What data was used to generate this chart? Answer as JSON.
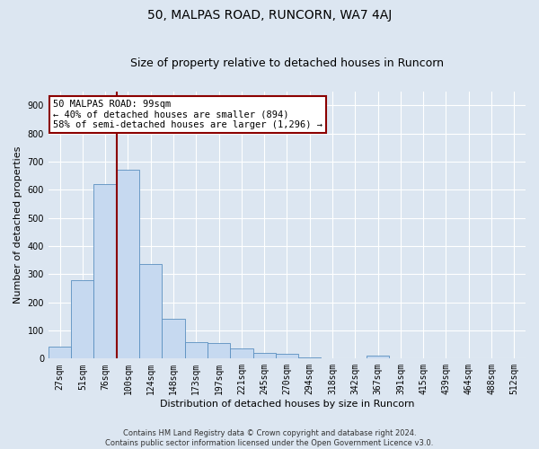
{
  "title": "50, MALPAS ROAD, RUNCORN, WA7 4AJ",
  "subtitle": "Size of property relative to detached houses in Runcorn",
  "xlabel": "Distribution of detached houses by size in Runcorn",
  "ylabel": "Number of detached properties",
  "footer_line1": "Contains HM Land Registry data © Crown copyright and database right 2024.",
  "footer_line2": "Contains public sector information licensed under the Open Government Licence v3.0.",
  "bar_labels": [
    "27sqm",
    "51sqm",
    "76sqm",
    "100sqm",
    "124sqm",
    "148sqm",
    "173sqm",
    "197sqm",
    "221sqm",
    "245sqm",
    "270sqm",
    "294sqm",
    "318sqm",
    "342sqm",
    "367sqm",
    "391sqm",
    "415sqm",
    "439sqm",
    "464sqm",
    "488sqm",
    "512sqm"
  ],
  "bar_values": [
    42,
    280,
    620,
    670,
    335,
    140,
    60,
    55,
    35,
    20,
    18,
    5,
    0,
    0,
    10,
    0,
    0,
    0,
    0,
    0,
    0
  ],
  "bar_color": "#c6d9f0",
  "bar_edge_color": "#5a8fc0",
  "property_line_color": "#8b0000",
  "property_line_index": 3,
  "annotation_text_line1": "50 MALPAS ROAD: 99sqm",
  "annotation_text_line2": "← 40% of detached houses are smaller (894)",
  "annotation_text_line3": "58% of semi-detached houses are larger (1,296) →",
  "annotation_box_color": "#ffffff",
  "annotation_box_edge_color": "#8b0000",
  "ylim": [
    0,
    950
  ],
  "yticks": [
    0,
    100,
    200,
    300,
    400,
    500,
    600,
    700,
    800,
    900
  ],
  "background_color": "#dce6f1",
  "plot_bg_color": "#dce6f1",
  "grid_color": "#ffffff",
  "title_fontsize": 10,
  "subtitle_fontsize": 9,
  "tick_fontsize": 7,
  "ylabel_fontsize": 8,
  "xlabel_fontsize": 8,
  "footer_fontsize": 6,
  "annotation_fontsize": 7.5
}
